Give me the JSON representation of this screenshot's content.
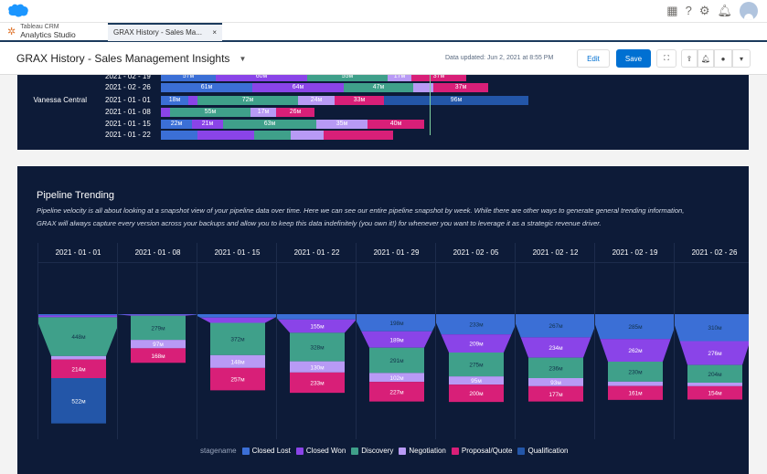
{
  "global_header": {
    "icons": [
      "app-launcher-icon",
      "help-icon",
      "setup-gear-icon",
      "notification-bell-icon",
      "user-avatar-icon"
    ]
  },
  "tabbar": {
    "app_line1": "Tableau CRM",
    "app_line2": "Analytics Studio",
    "tab_label": "GRAX History - Sales Ma...",
    "tab_close": "×"
  },
  "header": {
    "title": "GRAX History - Sales Management Insights",
    "title_dropdown": "▼",
    "data_updated": "Data updated: Jun 2, 2021 at 8:55 PM",
    "edit_label": "Edit",
    "save_label": "Save",
    "icons": [
      "fullscreen-icon",
      "share-icon",
      "subscribe-bell-icon",
      "comment-icon",
      "more-dropdown-icon"
    ]
  },
  "colors": {
    "Closed Lost": "#3b6fd6",
    "Closed Won": "#8a44e8",
    "Discovery": "#3fa08a",
    "Negotiation": "#b89af5",
    "Proposal/Quote": "#d81f78",
    "Qualification": "#2356a8"
  },
  "top_chart": {
    "rows": [
      {
        "group": "",
        "date": "2021 - 02 - 19",
        "segments": [
          [
            "Closed Lost",
            60,
            "57м"
          ],
          [
            "Closed Won",
            100,
            "60м"
          ],
          [
            "Discovery",
            88,
            "55м"
          ],
          [
            "Negotiation",
            26,
            "17м"
          ],
          [
            "Proposal/Quote",
            60,
            "37м"
          ]
        ]
      },
      {
        "group": "",
        "date": "2021 - 02 - 26",
        "segments": [
          [
            "Closed Lost",
            100,
            "61м"
          ],
          [
            "Closed Won",
            100,
            "64м"
          ],
          [
            "Discovery",
            76,
            "47м"
          ],
          [
            "Negotiation",
            22,
            ""
          ],
          [
            "Proposal/Quote",
            60,
            "37м"
          ]
        ]
      },
      {
        "group": "Vanessa Central",
        "date": "2021 - 01 - 01",
        "segments": [
          [
            "Closed Lost",
            30,
            "18м"
          ],
          [
            "Closed Won",
            10,
            ""
          ],
          [
            "Discovery",
            110,
            "72м"
          ],
          [
            "Negotiation",
            40,
            "24м"
          ],
          [
            "Proposal/Quote",
            54,
            "33м"
          ],
          [
            "Qualification",
            158,
            "96м"
          ]
        ]
      },
      {
        "group": "",
        "date": "2021 - 01 - 08",
        "segments": [
          [
            "Closed Won",
            10,
            ""
          ],
          [
            "Discovery",
            88,
            "55м"
          ],
          [
            "Negotiation",
            28,
            "17м"
          ],
          [
            "Proposal/Quote",
            42,
            "26м"
          ]
        ]
      },
      {
        "group": "",
        "date": "2021 - 01 - 15",
        "segments": [
          [
            "Closed Lost",
            34,
            "22м"
          ],
          [
            "Closed Won",
            34,
            "21м"
          ],
          [
            "Discovery",
            102,
            "63м"
          ],
          [
            "Negotiation",
            56,
            "35м"
          ],
          [
            "Proposal/Quote",
            62,
            "40м"
          ]
        ]
      },
      {
        "group": "",
        "date": "2021 - 01 - 22",
        "segments": [
          [
            "Closed Lost",
            40,
            ""
          ],
          [
            "Closed Won",
            62,
            ""
          ],
          [
            "Discovery",
            40,
            ""
          ],
          [
            "Negotiation",
            36,
            ""
          ],
          [
            "Proposal/Quote",
            76,
            ""
          ]
        ]
      }
    ]
  },
  "pipeline": {
    "title": "Pipeline Trending",
    "description": "Pipeline velocity is all about looking at a snapshot view of your pipeline data over time. Here we can see our entire pipeline snapshot by week.  While there are other ways to generate general trending information, GRAX will always capture every version across your backups and allow you to keep this data indefinitely (you own it!) for whenever you want to leverage it as a strategic revenue driver.",
    "legend_title": "stagename",
    "legend": [
      "Closed Lost",
      "Closed Won",
      "Discovery",
      "Negotiation",
      "Proposal/Quote",
      "Qualification"
    ]
  },
  "chart_data": {
    "type": "bar",
    "title": "Pipeline Trending",
    "subtype": "funnel",
    "categories": [
      "2021 - 01 - 01",
      "2021 - 01 - 08",
      "2021 - 01 - 15",
      "2021 - 01 - 22",
      "2021 - 01 - 29",
      "2021 - 02 - 05",
      "2021 - 02 - 12",
      "2021 - 02 - 19",
      "2021 - 02 - 26"
    ],
    "series": [
      {
        "name": "Closed Lost",
        "values": [
          15,
          5,
          40,
          60,
          198,
          233,
          267,
          285,
          310
        ]
      },
      {
        "name": "Closed Won",
        "values": [
          20,
          12,
          60,
          155,
          189,
          209,
          234,
          262,
          276
        ]
      },
      {
        "name": "Discovery",
        "values": [
          448,
          279,
          372,
          328,
          291,
          275,
          236,
          230,
          204
        ]
      },
      {
        "name": "Negotiation",
        "values": [
          40,
          97,
          148,
          130,
          102,
          95,
          93,
          50,
          40
        ]
      },
      {
        "name": "Proposal/Quote",
        "values": [
          214,
          168,
          257,
          233,
          227,
          200,
          177,
          161,
          154
        ]
      },
      {
        "name": "Qualification",
        "values": [
          522,
          0,
          0,
          0,
          0,
          0,
          0,
          0,
          0
        ]
      }
    ],
    "labels": [
      [
        "",
        "",
        "448м",
        "",
        "214м",
        "522м"
      ],
      [
        "",
        "",
        "279м",
        "97м",
        "168м",
        ""
      ],
      [
        "",
        "",
        "372м",
        "148м",
        "257м",
        ""
      ],
      [
        "",
        "155м",
        "328м",
        "130м",
        "233м",
        ""
      ],
      [
        "198м",
        "189м",
        "291м",
        "102м",
        "227м",
        ""
      ],
      [
        "233м",
        "209м",
        "275м",
        "95м",
        "200м",
        ""
      ],
      [
        "267м",
        "234м",
        "236м",
        "93м",
        "177м",
        ""
      ],
      [
        "285м",
        "262м",
        "230м",
        "",
        "161м",
        ""
      ],
      [
        "310м",
        "276м",
        "204м",
        "",
        "154м",
        ""
      ]
    ],
    "unit": "м",
    "legend_title": "stagename",
    "legend_position": "bottom"
  }
}
